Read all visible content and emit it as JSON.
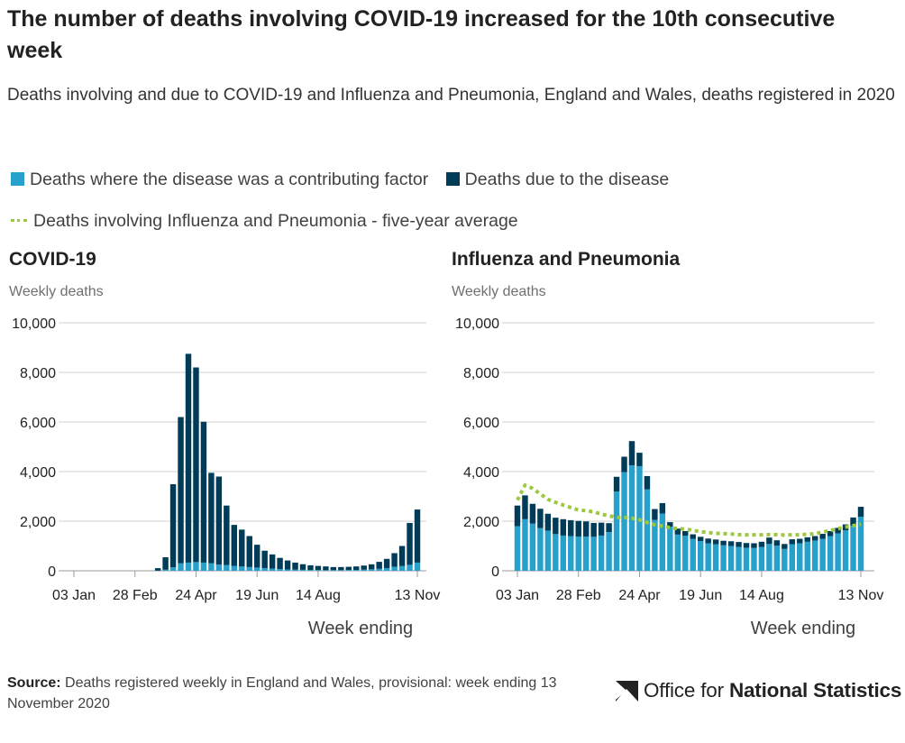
{
  "title": "The number of deaths involving COVID-19 increased for the 10th consecutive week",
  "subtitle": "Deaths involving and due to COVID-19 and Influenza and Pneumonia, England and Wales, deaths registered in 2020",
  "legend": {
    "contributing": {
      "label": "Deaths where the disease was a contributing factor",
      "color": "#27a0cc"
    },
    "due": {
      "label": "Deaths due to the disease",
      "color": "#003c57"
    },
    "average": {
      "label": "Deaths involving Influenza and Pneumonia - five-year average",
      "color": "#9cc83c"
    }
  },
  "source": {
    "label": "Source:",
    "text": "Deaths registered weekly in England and Wales, provisional: week ending 13 November 2020"
  },
  "logo": {
    "text_light": "Office for",
    "text_bold": "National Statistics"
  },
  "chart_data": [
    {
      "type": "bar",
      "stacked": true,
      "title": "COVID-19",
      "ylabel": "Weekly deaths",
      "xlabel": "Week ending",
      "ylim": [
        0,
        10000
      ],
      "yticks": [
        0,
        2000,
        4000,
        6000,
        8000,
        10000
      ],
      "ytick_labels": [
        "0",
        "2,000",
        "4,000",
        "6,000",
        "8,000",
        "10,000"
      ],
      "xtick_labels": [
        {
          "week": 1,
          "label": "03 Jan"
        },
        {
          "week": 9,
          "label": "28 Feb"
        },
        {
          "week": 17,
          "label": "24 Apr"
        },
        {
          "week": 25,
          "label": "19 Jun"
        },
        {
          "week": 33,
          "label": "14 Aug"
        },
        {
          "week": 46,
          "label": "13 Nov"
        }
      ],
      "weeks": 46,
      "series": [
        {
          "name": "Deaths where the disease was a contributing factor",
          "values": [
            0,
            0,
            0,
            0,
            0,
            0,
            0,
            0,
            0,
            0,
            0,
            5,
            45,
            140,
            300,
            330,
            350,
            330,
            300,
            250,
            230,
            200,
            170,
            150,
            130,
            110,
            90,
            70,
            55,
            45,
            40,
            35,
            30,
            25,
            25,
            25,
            30,
            35,
            45,
            60,
            80,
            110,
            160,
            190,
            240,
            330
          ]
        },
        {
          "name": "Deaths due to the disease",
          "values": [
            0,
            0,
            0,
            0,
            0,
            0,
            0,
            0,
            0,
            0,
            0,
            100,
            500,
            3350,
            5900,
            8420,
            7850,
            5680,
            3650,
            3550,
            2400,
            1650,
            1490,
            1250,
            920,
            700,
            570,
            450,
            360,
            285,
            225,
            185,
            165,
            150,
            125,
            125,
            130,
            140,
            165,
            200,
            280,
            370,
            550,
            810,
            1690,
            2140
          ]
        }
      ]
    },
    {
      "type": "bar",
      "stacked": true,
      "title": "Influenza and Pneumonia",
      "ylabel": "Weekly deaths",
      "xlabel": "Week ending",
      "ylim": [
        0,
        10000
      ],
      "yticks": [
        0,
        2000,
        4000,
        6000,
        8000,
        10000
      ],
      "ytick_labels": [
        "0",
        "2,000",
        "4,000",
        "6,000",
        "8,000",
        "10,000"
      ],
      "xtick_labels": [
        {
          "week": 1,
          "label": "03 Jan"
        },
        {
          "week": 9,
          "label": "28 Feb"
        },
        {
          "week": 17,
          "label": "24 Apr"
        },
        {
          "week": 25,
          "label": "19 Jun"
        },
        {
          "week": 33,
          "label": "14 Aug"
        },
        {
          "week": 46,
          "label": "13 Nov"
        }
      ],
      "weeks": 46,
      "series": [
        {
          "name": "Deaths where the disease was a contributing factor",
          "values": [
            1800,
            2080,
            1900,
            1720,
            1620,
            1480,
            1420,
            1400,
            1380,
            1380,
            1370,
            1420,
            1560,
            3200,
            3980,
            4250,
            4220,
            3280,
            2050,
            2310,
            1780,
            1460,
            1410,
            1290,
            1200,
            1110,
            1070,
            1030,
            1000,
            960,
            930,
            920,
            960,
            1080,
            1010,
            880,
            1070,
            1110,
            1170,
            1220,
            1290,
            1400,
            1510,
            1630,
            1820,
            2180
          ]
        },
        {
          "name": "Deaths due to the disease",
          "values": [
            830,
            960,
            800,
            780,
            680,
            660,
            660,
            640,
            630,
            610,
            560,
            520,
            360,
            590,
            620,
            980,
            540,
            540,
            440,
            420,
            180,
            240,
            190,
            180,
            170,
            190,
            190,
            180,
            190,
            200,
            190,
            190,
            210,
            260,
            220,
            200,
            200,
            180,
            180,
            180,
            200,
            200,
            220,
            240,
            330,
            400
          ]
        },
        {
          "name": "Deaths involving Influenza and Pneumonia - five-year average",
          "type": "line",
          "values": [
            2850,
            3450,
            3320,
            3100,
            2880,
            2760,
            2650,
            2550,
            2450,
            2420,
            2380,
            2280,
            2220,
            2150,
            2150,
            2120,
            2060,
            1950,
            1850,
            1800,
            1740,
            1700,
            1680,
            1630,
            1580,
            1540,
            1510,
            1500,
            1480,
            1460,
            1450,
            1450,
            1450,
            1460,
            1460,
            1440,
            1450,
            1450,
            1470,
            1500,
            1560,
            1620,
            1700,
            1760,
            1820,
            1880
          ]
        }
      ]
    }
  ]
}
